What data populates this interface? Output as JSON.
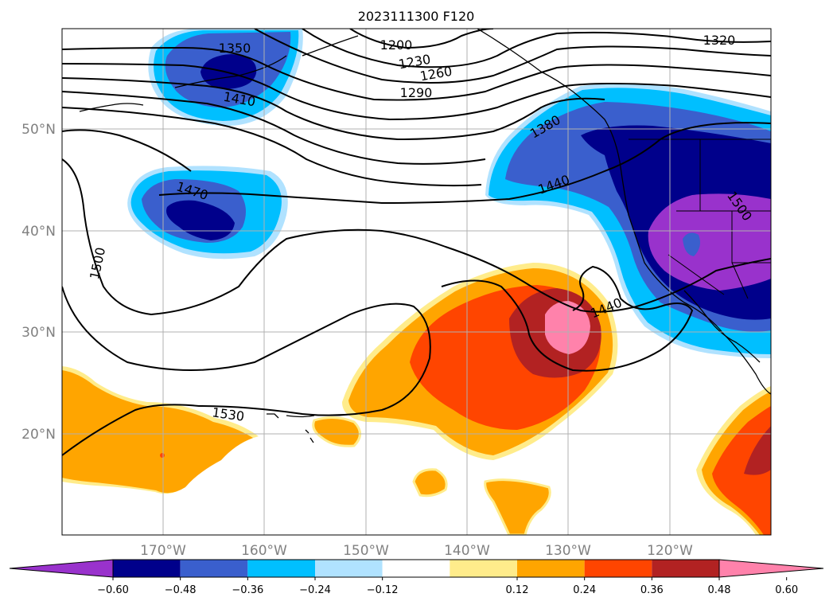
{
  "title": "2023111300 F120",
  "lat_labels": [
    "50°N",
    "40°N",
    "30°N",
    "20°N"
  ],
  "lon_labels": [
    "170°W",
    "160°W",
    "150°W",
    "140°W",
    "130°W",
    "120°W"
  ],
  "contour_labels": [
    "1200",
    "1230",
    "1260",
    "1290",
    "1320",
    "1350",
    "1380",
    "1410",
    "1440",
    "1470",
    "1500",
    "1530",
    "1440",
    "1500"
  ],
  "colorbar": {
    "ticks": [
      "−0.60",
      "−0.48",
      "−0.36",
      "−0.24",
      "−0.12",
      "0.12",
      "0.24",
      "0.36",
      "0.48",
      "0.60"
    ],
    "colors": [
      "#9932cc",
      "#00008b",
      "#3a5fcd",
      "#00bfff",
      "#b0e2ff",
      "#ffffff",
      "#ffec8b",
      "#ffa500",
      "#ff4500",
      "#b22222",
      "#ff82ab"
    ]
  }
}
